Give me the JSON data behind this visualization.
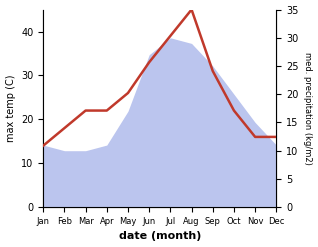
{
  "months": [
    "Jan",
    "Feb",
    "Mar",
    "Apr",
    "May",
    "Jun",
    "Jul",
    "Aug",
    "Sep",
    "Oct",
    "Nov",
    "Dec"
  ],
  "temp": [
    14,
    18,
    22,
    22,
    26,
    33,
    39,
    45,
    31,
    22,
    16,
    16
  ],
  "precip": [
    11,
    10,
    10,
    11,
    17,
    27,
    30,
    29,
    25,
    20,
    15,
    11
  ],
  "temp_color": "#c0392b",
  "precip_fill_color": "#bbc5ee",
  "left_label": "max temp (C)",
  "right_label": "med. precipitation (kg/m2)",
  "xlabel": "date (month)",
  "ylim_left": [
    0,
    45
  ],
  "ylim_right": [
    0,
    35
  ],
  "left_ticks": [
    0,
    10,
    20,
    30,
    40
  ],
  "right_ticks": [
    0,
    5,
    10,
    15,
    20,
    25,
    30,
    35
  ],
  "bg_color": "#ffffff",
  "line_width": 1.8
}
